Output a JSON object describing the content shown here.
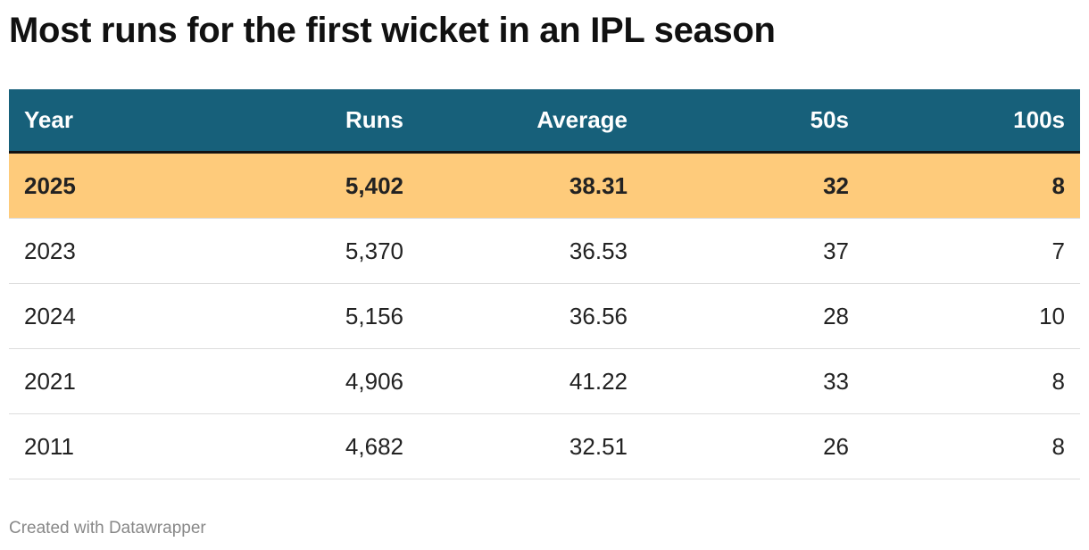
{
  "header": {
    "title": "Most runs for the first wicket in an IPL season"
  },
  "table": {
    "columns": [
      "Year",
      "Runs",
      "Average",
      "50s",
      "100s"
    ],
    "rows": [
      [
        "2025",
        "5,402",
        "38.31",
        "32",
        "8"
      ],
      [
        "2023",
        "5,370",
        "36.53",
        "37",
        "7"
      ],
      [
        "2024",
        "5,156",
        "36.56",
        "28",
        "10"
      ],
      [
        "2021",
        "4,906",
        "41.22",
        "33",
        "8"
      ],
      [
        "2011",
        "4,682",
        "32.51",
        "26",
        "8"
      ]
    ]
  },
  "footer": {
    "credit": "Created with Datawrapper"
  }
}
